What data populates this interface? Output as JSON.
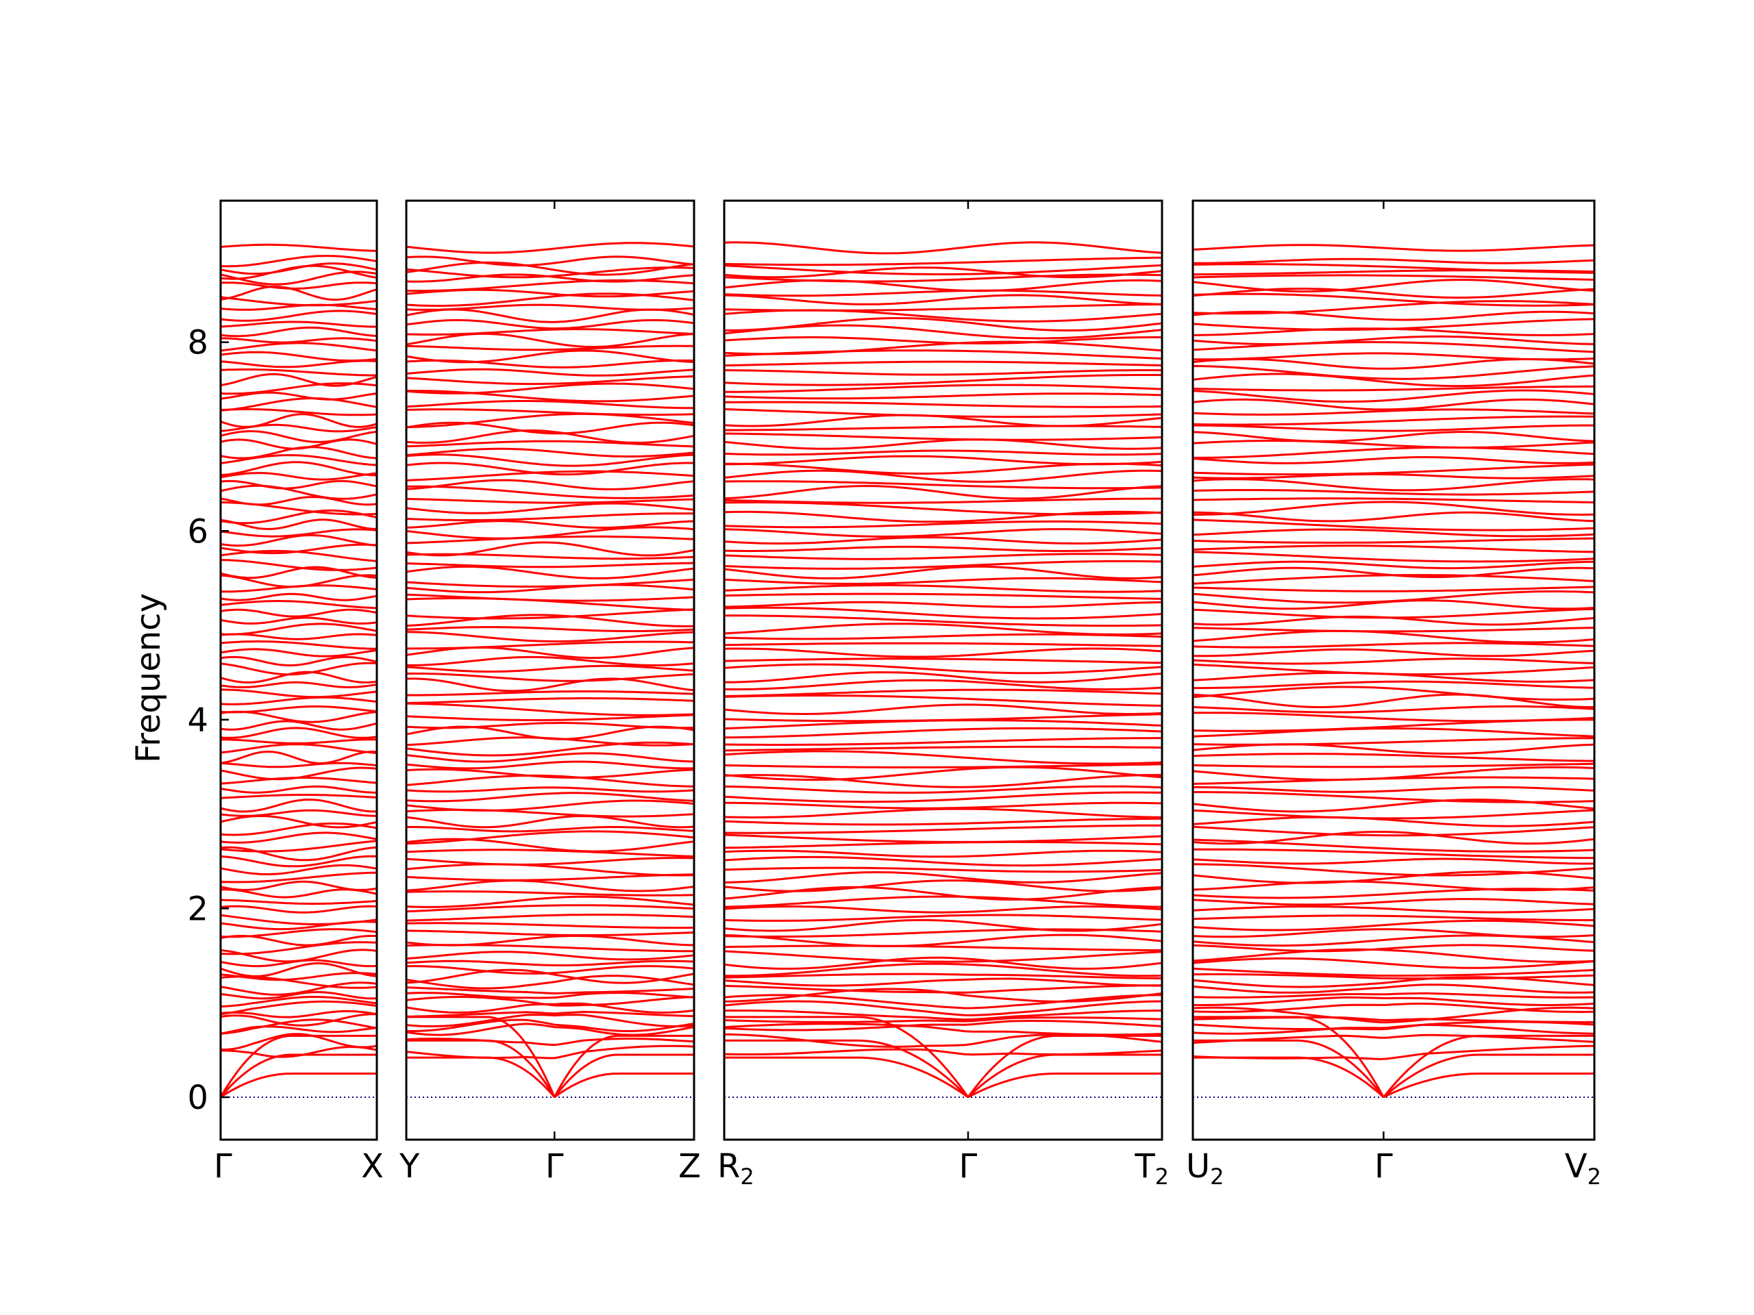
{
  "chart_data": {
    "type": "line",
    "title": "",
    "ylabel": "Frequency",
    "xlabel": "",
    "ylim": [
      -0.45,
      9.5
    ],
    "yticks": [
      0,
      2,
      4,
      6,
      8
    ],
    "grid": false,
    "band_color": "#ff0000",
    "zero_line_color": "#00008b",
    "panels": [
      {
        "xticks": [
          {
            "label": "Γ",
            "sub": "",
            "pos": 0
          },
          {
            "label": "X",
            "sub": "",
            "pos": 1
          }
        ],
        "kinks": [
          {
            "center": 0,
            "side": "right",
            "w": 0.2,
            "freqs": [
              0.28,
              0.48,
              0.72,
              0.76
            ]
          }
        ]
      },
      {
        "xticks": [
          {
            "label": "Y",
            "sub": "",
            "pos": 0
          },
          {
            "label": "Γ",
            "sub": "",
            "pos": 0.515
          },
          {
            "label": "Z",
            "sub": "",
            "pos": 1
          }
        ],
        "kinks": [
          {
            "center": 0.515,
            "side": "both",
            "w": 0.1,
            "freqs": [
              0.28,
              0.48,
              0.72,
              0.76
            ]
          }
        ]
      },
      {
        "xticks": [
          {
            "label": "R",
            "sub": "2",
            "pos": 0
          },
          {
            "label": "Γ",
            "sub": "",
            "pos": 0.557
          },
          {
            "label": "T",
            "sub": "2",
            "pos": 1
          }
        ],
        "kinks": [
          {
            "center": 0.557,
            "side": "both",
            "w": 0.1,
            "freqs": [
              0.28,
              0.48,
              0.72,
              0.76
            ]
          }
        ]
      },
      {
        "xticks": [
          {
            "label": "U",
            "sub": "2",
            "pos": 0
          },
          {
            "label": "Γ",
            "sub": "",
            "pos": 0.475
          },
          {
            "label": "V",
            "sub": "2",
            "pos": 1
          }
        ],
        "kinks": [
          {
            "center": 0.475,
            "side": "both",
            "w": 0.1,
            "freqs": [
              0.28,
              0.48,
              0.72,
              0.76
            ]
          }
        ]
      }
    ],
    "acoustic_branches": [
      {
        "name": "",
        "end_freq_left": 0.42,
        "end_freq_right": 0.25
      },
      {
        "name": "",
        "end_freq_left": 0.6,
        "end_freq_right": 0.45
      },
      {
        "name": "",
        "end_freq_left": 0.85,
        "end_freq_right": 0.65
      }
    ],
    "optical_bands": [
      0.48,
      0.6,
      0.72,
      0.76,
      0.82,
      0.88,
      0.95,
      1.02,
      1.08,
      1.15,
      1.22,
      1.28,
      1.35,
      1.42,
      1.5,
      1.58,
      1.66,
      1.74,
      1.82,
      1.9,
      1.99,
      2.07,
      2.16,
      2.24,
      2.33,
      2.41,
      2.5,
      2.58,
      2.67,
      2.75,
      2.84,
      2.92,
      3.01,
      3.09,
      3.18,
      3.26,
      3.35,
      3.43,
      3.52,
      3.6,
      3.69,
      3.77,
      3.86,
      3.94,
      4.03,
      4.11,
      4.2,
      4.28,
      4.37,
      4.45,
      4.54,
      4.62,
      4.71,
      4.79,
      4.88,
      4.96,
      5.05,
      5.13,
      5.22,
      5.3,
      5.39,
      5.47,
      5.56,
      5.64,
      5.73,
      5.81,
      5.9,
      5.98,
      6.07,
      6.15,
      6.24,
      6.32,
      6.41,
      6.49,
      6.58,
      6.66,
      6.75,
      6.83,
      6.92,
      7.0,
      7.09,
      7.17,
      7.26,
      7.34,
      7.43,
      7.51,
      7.6,
      7.68,
      7.77,
      7.85,
      7.94,
      8.02,
      8.11,
      8.19,
      8.28,
      8.37,
      8.45,
      8.52,
      8.6,
      8.68,
      8.74,
      8.78,
      8.86,
      9.0
    ]
  }
}
